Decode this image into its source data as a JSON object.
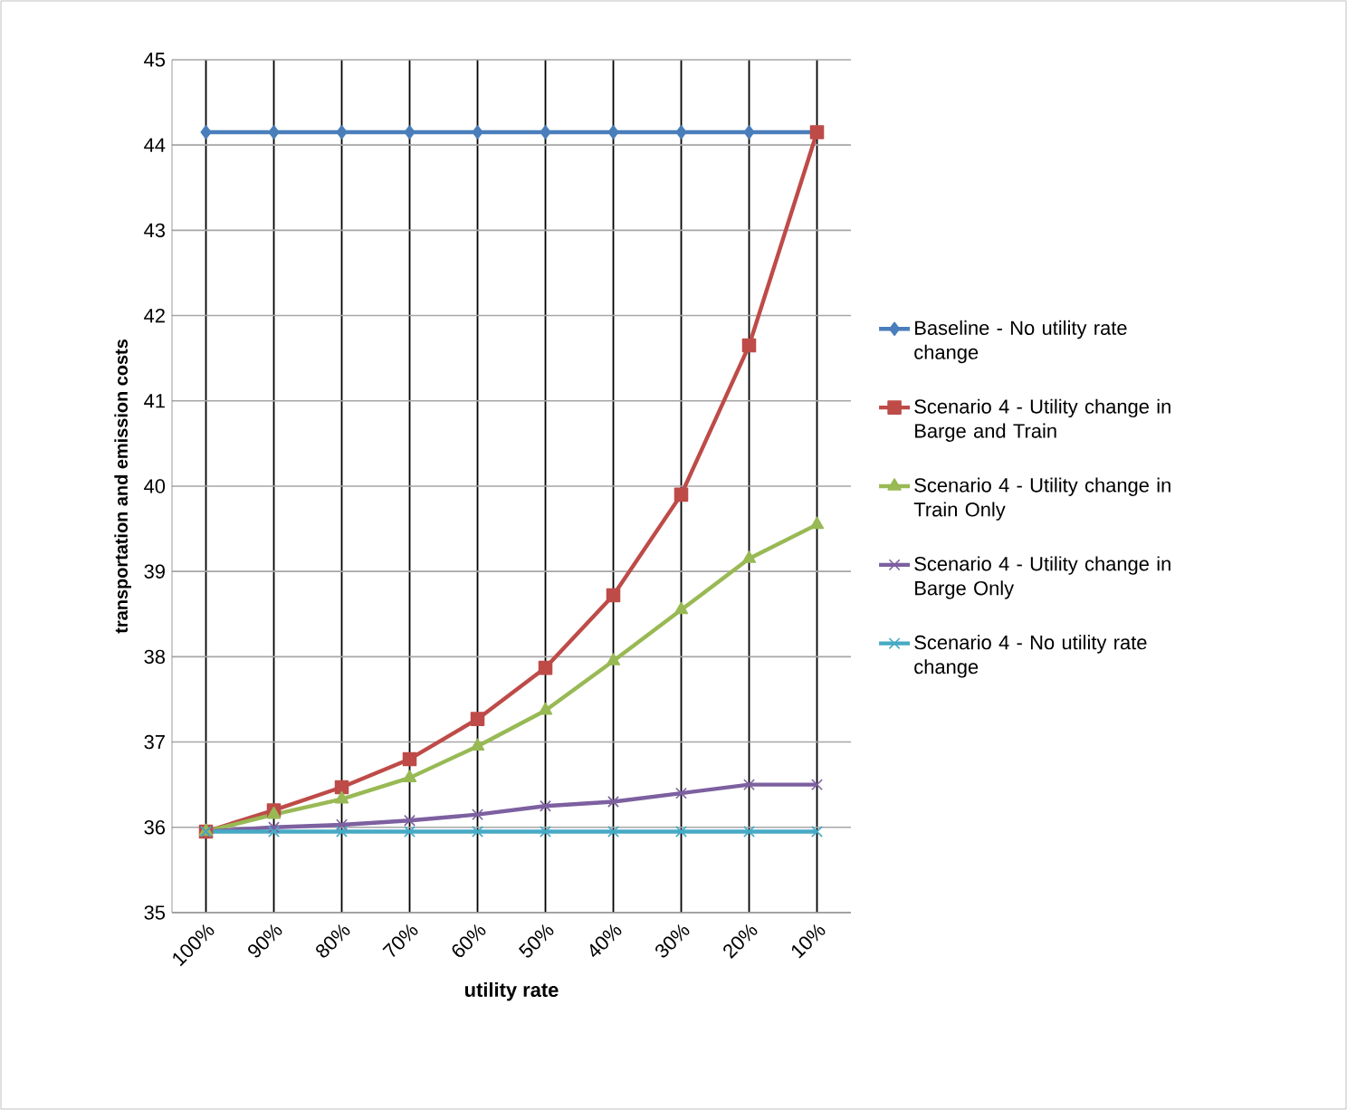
{
  "chart_data": {
    "type": "line",
    "xlabel": "utility rate",
    "ylabel": "transportation and emission costs",
    "categories": [
      "100%",
      "90%",
      "80%",
      "70%",
      "60%",
      "50%",
      "40%",
      "30%",
      "20%",
      "10%"
    ],
    "ylim": [
      35,
      45
    ],
    "yticks": [
      35,
      36,
      37,
      38,
      39,
      40,
      41,
      42,
      43,
      44,
      45
    ],
    "grid": true,
    "legend": "right",
    "series": [
      {
        "name": "Baseline - No utility rate change",
        "color": "#4a7ebb",
        "marker": "diamond",
        "values": [
          44.15,
          44.15,
          44.15,
          44.15,
          44.15,
          44.15,
          44.15,
          44.15,
          44.15,
          44.15
        ]
      },
      {
        "name": "Scenario 4 - Utility change in Barge and Train",
        "color": "#be4b48",
        "marker": "square",
        "values": [
          35.95,
          36.2,
          36.47,
          36.8,
          37.27,
          37.87,
          38.72,
          39.9,
          41.65,
          44.15
        ]
      },
      {
        "name": "Scenario 4 - Utility change in Train Only",
        "color": "#98b954",
        "marker": "triangle",
        "values": [
          35.95,
          36.15,
          36.33,
          36.58,
          36.95,
          37.37,
          37.95,
          38.55,
          39.15,
          39.55
        ]
      },
      {
        "name": "Scenario 4 - Utility change in Barge Only",
        "color": "#7d60a0",
        "marker": "cross",
        "values": [
          35.95,
          36.0,
          36.03,
          36.08,
          36.15,
          36.25,
          36.3,
          36.4,
          36.5,
          36.5
        ]
      },
      {
        "name": "Scenario 4 - No utility rate change",
        "color": "#46aac5",
        "marker": "cross",
        "values": [
          35.95,
          35.95,
          35.95,
          35.95,
          35.95,
          35.95,
          35.95,
          35.95,
          35.95,
          35.95
        ]
      }
    ]
  }
}
